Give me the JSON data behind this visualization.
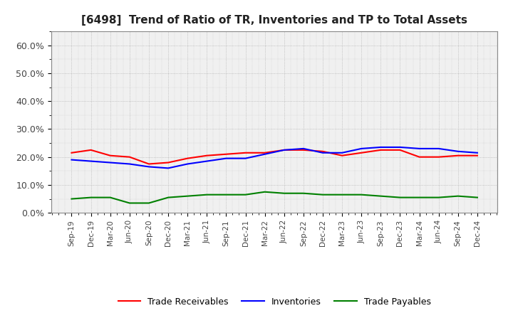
{
  "title": "[6498]  Trend of Ratio of TR, Inventories and TP to Total Assets",
  "x_labels": [
    "Sep-19",
    "Dec-19",
    "Mar-20",
    "Jun-20",
    "Sep-20",
    "Dec-20",
    "Mar-21",
    "Jun-21",
    "Sep-21",
    "Dec-21",
    "Mar-22",
    "Jun-22",
    "Sep-22",
    "Dec-22",
    "Mar-23",
    "Jun-23",
    "Sep-23",
    "Dec-23",
    "Mar-24",
    "Jun-24",
    "Sep-24",
    "Dec-24"
  ],
  "trade_receivables": [
    21.5,
    22.5,
    20.5,
    20.0,
    17.5,
    18.0,
    19.5,
    20.5,
    21.0,
    21.5,
    21.5,
    22.5,
    22.5,
    22.0,
    20.5,
    21.5,
    22.5,
    22.5,
    20.0,
    20.0,
    20.5,
    20.5
  ],
  "inventories": [
    19.0,
    18.5,
    18.0,
    17.5,
    16.5,
    16.0,
    17.5,
    18.5,
    19.5,
    19.5,
    21.0,
    22.5,
    23.0,
    21.5,
    21.5,
    23.0,
    23.5,
    23.5,
    23.0,
    23.0,
    22.0,
    21.5
  ],
  "trade_payables": [
    5.0,
    5.5,
    5.5,
    3.5,
    3.5,
    5.5,
    6.0,
    6.5,
    6.5,
    6.5,
    7.5,
    7.0,
    7.0,
    6.5,
    6.5,
    6.5,
    6.0,
    5.5,
    5.5,
    5.5,
    6.0,
    5.5
  ],
  "tr_color": "#ff0000",
  "inv_color": "#0000ff",
  "tp_color": "#008000",
  "ylim": [
    0,
    65
  ],
  "yticks": [
    0,
    10,
    20,
    30,
    40,
    50,
    60
  ],
  "ytick_labels": [
    "0.0%",
    "10.0%",
    "20.0%",
    "30.0%",
    "40.0%",
    "50.0%",
    "60.0%"
  ],
  "background_color": "#ffffff",
  "plot_bg_color": "#f0f0f0",
  "grid_color": "#888888",
  "legend_labels": [
    "Trade Receivables",
    "Inventories",
    "Trade Payables"
  ]
}
